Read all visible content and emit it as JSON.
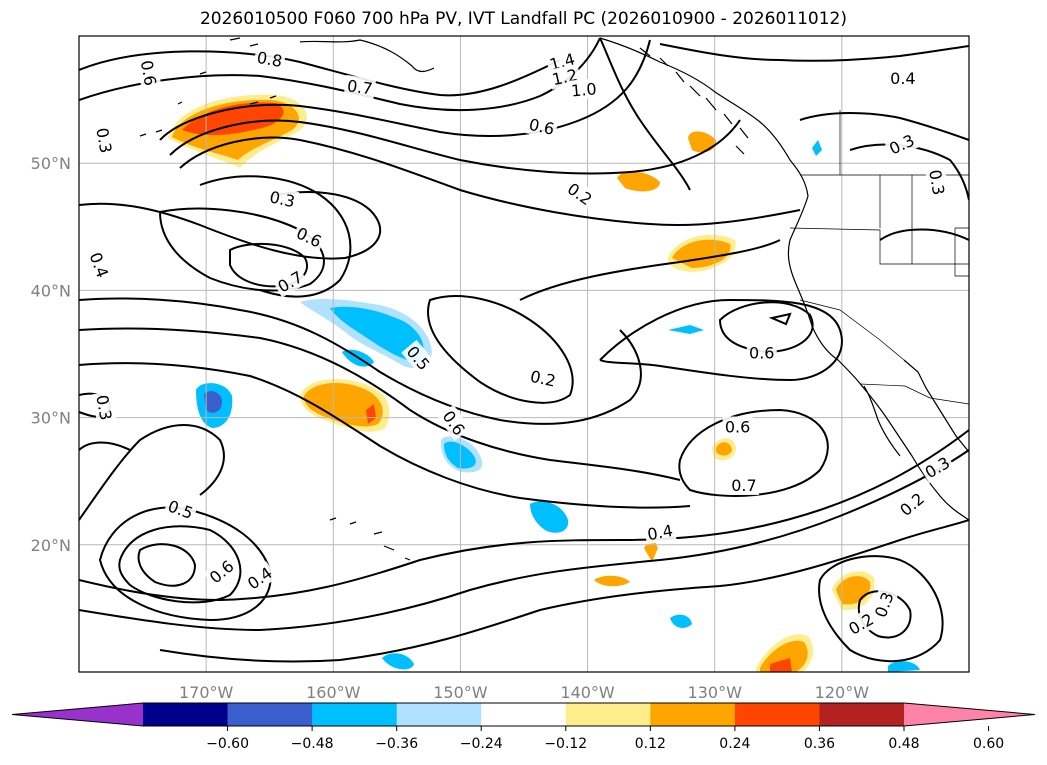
{
  "title": "2026010500 F060 700 hPa PV, IVT Landfall PC (2026010900 - 2026011012)",
  "map": {
    "lon_range": [
      -180,
      -110
    ],
    "lat_range": [
      10,
      60
    ],
    "lon_labels": [
      {
        "lon": -170,
        "text": "170°W"
      },
      {
        "lon": -160,
        "text": "160°W"
      },
      {
        "lon": -150,
        "text": "150°W"
      },
      {
        "lon": -140,
        "text": "140°W"
      },
      {
        "lon": -130,
        "text": "130°W"
      },
      {
        "lon": -120,
        "text": "120°W"
      }
    ],
    "lat_labels": [
      {
        "lat": 50,
        "text": "50°N"
      },
      {
        "lat": 40,
        "text": "40°N"
      },
      {
        "lat": 30,
        "text": "30°N"
      },
      {
        "lat": 20,
        "text": "20°N"
      }
    ],
    "contour_labels": [
      {
        "lon": -165,
        "lat": 58.2,
        "text": "0.8",
        "rot": 10
      },
      {
        "lon": -142,
        "lat": 58.0,
        "text": "1.4",
        "rot": -15
      },
      {
        "lon": -141.8,
        "lat": 56.8,
        "text": "1.2",
        "rot": -12
      },
      {
        "lon": -140.3,
        "lat": 55.8,
        "text": "1.0",
        "rot": -5
      },
      {
        "lon": -157.9,
        "lat": 56.0,
        "text": "0.7",
        "rot": 8
      },
      {
        "lon": -143.6,
        "lat": 52.9,
        "text": "0.6",
        "rot": 12
      },
      {
        "lon": -174.5,
        "lat": 57.1,
        "text": "0.6",
        "rot": 80
      },
      {
        "lon": -115.2,
        "lat": 56.7,
        "text": "0.4",
        "rot": 0
      },
      {
        "lon": -115.3,
        "lat": 51.5,
        "text": "0.3",
        "rot": -25
      },
      {
        "lon": -112.5,
        "lat": 48.5,
        "text": "0.3",
        "rot": 80
      },
      {
        "lon": -178.0,
        "lat": 51.8,
        "text": "0.3",
        "rot": 80
      },
      {
        "lon": -164.0,
        "lat": 47.2,
        "text": "0.3",
        "rot": 12
      },
      {
        "lon": -140.6,
        "lat": 47.6,
        "text": "0.2",
        "rot": 35
      },
      {
        "lon": -161.9,
        "lat": 44.2,
        "text": "0.6",
        "rot": 25
      },
      {
        "lon": -163.4,
        "lat": 40.7,
        "text": "0.7",
        "rot": -30
      },
      {
        "lon": -178.4,
        "lat": 42.0,
        "text": "0.4",
        "rot": 70
      },
      {
        "lon": -153.3,
        "lat": 34.7,
        "text": "0.5",
        "rot": 50
      },
      {
        "lon": -143.5,
        "lat": 33.1,
        "text": "0.2",
        "rot": 12
      },
      {
        "lon": -150.5,
        "lat": 29.6,
        "text": "0.6",
        "rot": 55
      },
      {
        "lon": -126.3,
        "lat": 35.1,
        "text": "0.6",
        "rot": 0
      },
      {
        "lon": -178.0,
        "lat": 30.8,
        "text": "0.3",
        "rot": 80
      },
      {
        "lon": -128.2,
        "lat": 29.3,
        "text": "0.6",
        "rot": 0
      },
      {
        "lon": -127.7,
        "lat": 24.7,
        "text": "0.7",
        "rot": 0
      },
      {
        "lon": -112.5,
        "lat": 26.1,
        "text": "0.3",
        "rot": -30
      },
      {
        "lon": -114.5,
        "lat": 23.2,
        "text": "0.2",
        "rot": -40
      },
      {
        "lon": -134.3,
        "lat": 21.0,
        "text": "0.4",
        "rot": -10
      },
      {
        "lon": -172.0,
        "lat": 22.8,
        "text": "0.5",
        "rot": 20
      },
      {
        "lon": -168.8,
        "lat": 17.9,
        "text": "0.6",
        "rot": -40
      },
      {
        "lon": -165.8,
        "lat": 17.4,
        "text": "0.4",
        "rot": -35
      },
      {
        "lon": -116.7,
        "lat": 15.3,
        "text": "0.3",
        "rot": -70
      },
      {
        "lon": -118.5,
        "lat": 13.8,
        "text": "0.2",
        "rot": -30
      }
    ]
  },
  "colorbar": {
    "colors": [
      "#9932cc",
      "#00008b",
      "#3a5fcd",
      "#00bfff",
      "#b0e2ff",
      "#ffffff",
      "#ffec8b",
      "#ffa500",
      "#ff4500",
      "#b22222",
      "#ff82ab"
    ],
    "ticks": [
      "−0.60",
      "−0.48",
      "−0.36",
      "−0.24",
      "−0.12",
      "0.12",
      "0.24",
      "0.36",
      "0.48",
      "0.60"
    ]
  }
}
